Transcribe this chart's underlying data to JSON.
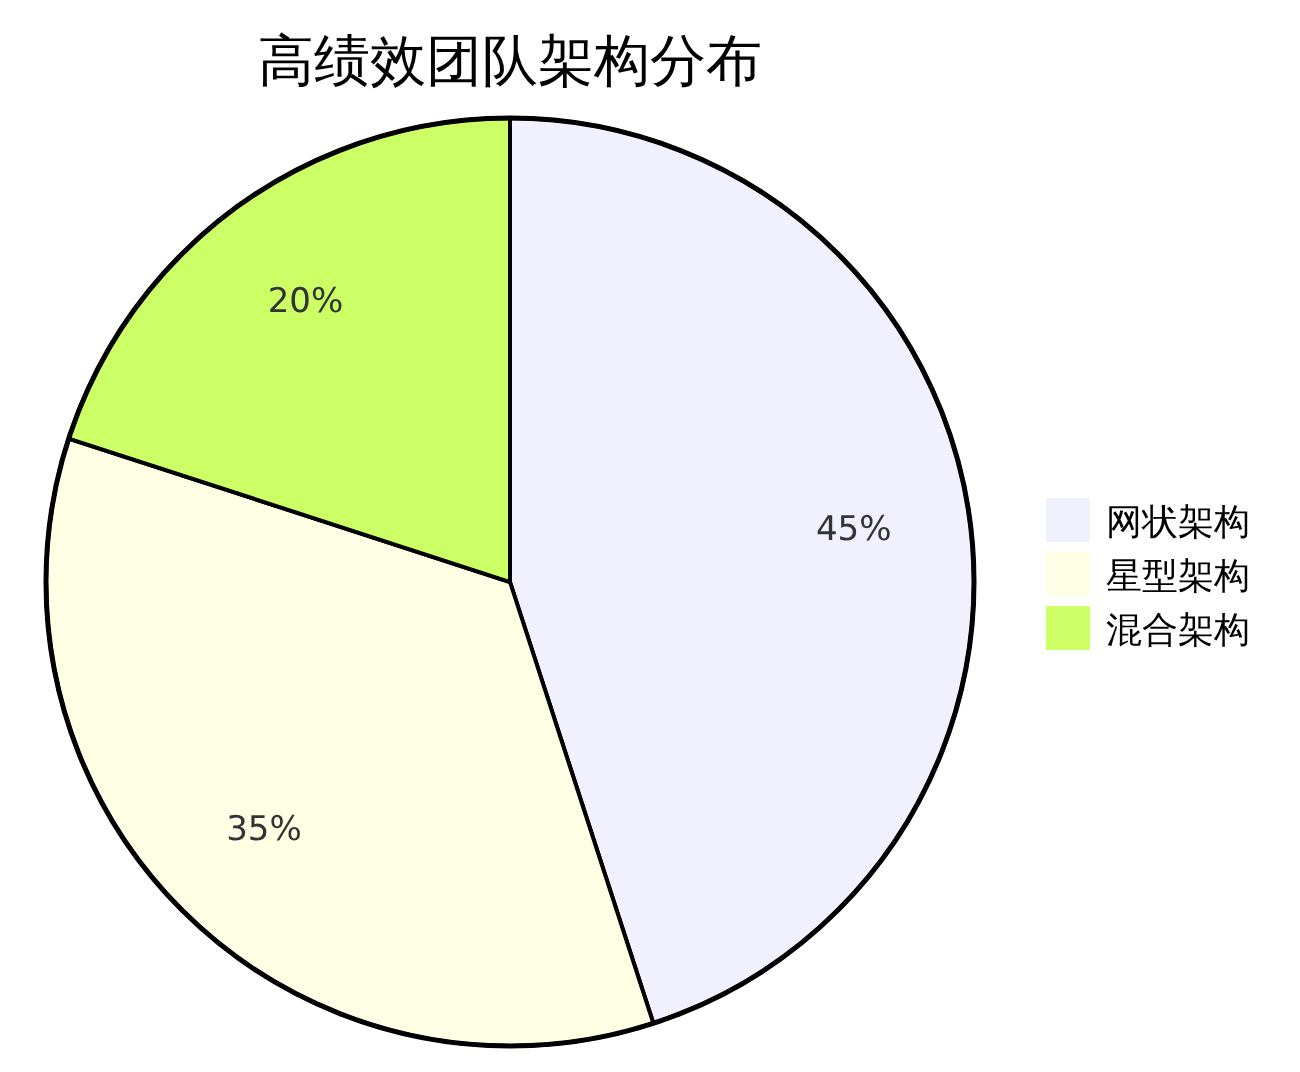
{
  "chart_data": {
    "type": "pie",
    "title": "高绩效团队架构分布",
    "categories": [
      "网状架构",
      "星型架构",
      "混合架构"
    ],
    "values": [
      45,
      35,
      20
    ],
    "colors": [
      "#f0f0ff",
      "#ffffe6",
      "#ccff66"
    ],
    "value_labels": [
      "45%",
      "35%",
      "20%"
    ],
    "legend": "right"
  }
}
